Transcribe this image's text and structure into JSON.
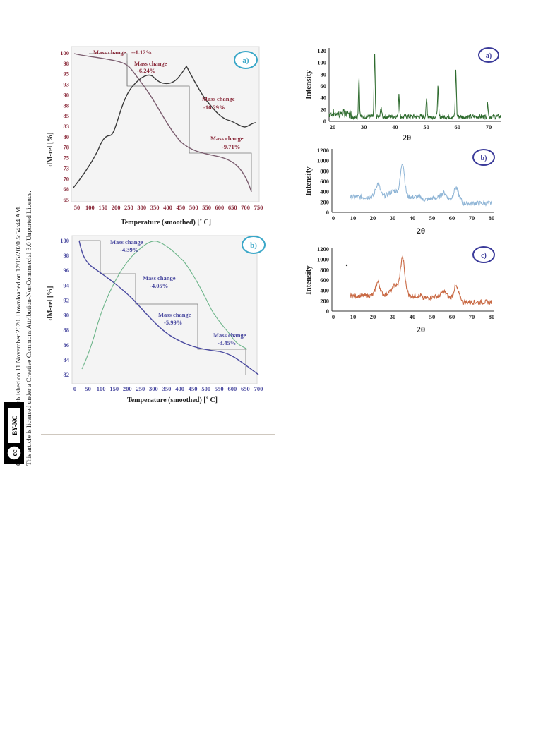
{
  "sidebar": {
    "line1": "Open Access Article. Published on 11 November 2020. Downloaded on 12/15/2020 5:54:44 AM.",
    "line2": "This article is licensed under a Creative Commons Attribution-NonCommercial 3.0 Unported Licence.",
    "badge_cc": "cc",
    "badge_text": "BY-NC"
  },
  "tga_a": {
    "panel_label": "a)",
    "xlabel": "Temperature (smoothed) [˚ C]",
    "ylabel": "dM-rel [%]",
    "xticks": [
      "50",
      "100",
      "150",
      "200",
      "250",
      "300",
      "350",
      "400",
      "450",
      "500",
      "550",
      "600",
      "650",
      "700",
      "750"
    ],
    "yticks": [
      "100",
      "98",
      "95",
      "93",
      "90",
      "88",
      "85",
      "83",
      "80",
      "78",
      "75",
      "73",
      "70",
      "68",
      "65"
    ],
    "annotations": [
      {
        "label": "Mass change",
        "value": "--1.12%"
      },
      {
        "label": "Mass change",
        "value": "-6.24%"
      },
      {
        "label": "Mass change",
        "value": "-16.29%"
      },
      {
        "label": "Mass change",
        "value": "-9.71%"
      }
    ]
  },
  "tga_b": {
    "panel_label": "b)",
    "xlabel": "Temperature (smoothed) [˚ C]",
    "ylabel": "dM-rel [%]",
    "xticks": [
      "0",
      "50",
      "100",
      "150",
      "200",
      "250",
      "300",
      "350",
      "400",
      "450",
      "500",
      "550",
      "600",
      "650",
      "700"
    ],
    "yticks": [
      "100",
      "98",
      "96",
      "94",
      "92",
      "90",
      "88",
      "86",
      "84",
      "82"
    ],
    "annotations": [
      {
        "label": "Mass change",
        "value": "-4.39%"
      },
      {
        "label": "Mass change",
        "value": "-4.05%"
      },
      {
        "label": "Mass change",
        "value": "-5.99%"
      },
      {
        "label": "Mass change",
        "value": "-3.45%"
      }
    ]
  },
  "xrd_a": {
    "panel_label": "a)",
    "xlabel": "2θ",
    "ylabel": "Intensity",
    "xticks": [
      "20",
      "30",
      "40",
      "50",
      "60",
      "70"
    ],
    "yticks": [
      "120",
      "100",
      "80",
      "60",
      "40",
      "20",
      "0"
    ],
    "color": "#2e6b2e"
  },
  "xrd_b": {
    "panel_label": "b)",
    "xlabel": "2θ",
    "ylabel": "Intensity",
    "xticks": [
      "0",
      "10",
      "20",
      "30",
      "40",
      "50",
      "60",
      "70",
      "80"
    ],
    "yticks": [
      "1200",
      "1000",
      "800",
      "600",
      "400",
      "200",
      "0"
    ],
    "color": "#8fb5d6"
  },
  "xrd_c": {
    "panel_label": "c)",
    "xlabel": "2θ",
    "ylabel": "Intensity",
    "xticks": [
      "0",
      "10",
      "20",
      "30",
      "40",
      "50",
      "60",
      "70",
      "80"
    ],
    "yticks": [
      "1200",
      "1000",
      "800",
      "600",
      "400",
      "200",
      "0"
    ],
    "color": "#c96a45"
  }
}
